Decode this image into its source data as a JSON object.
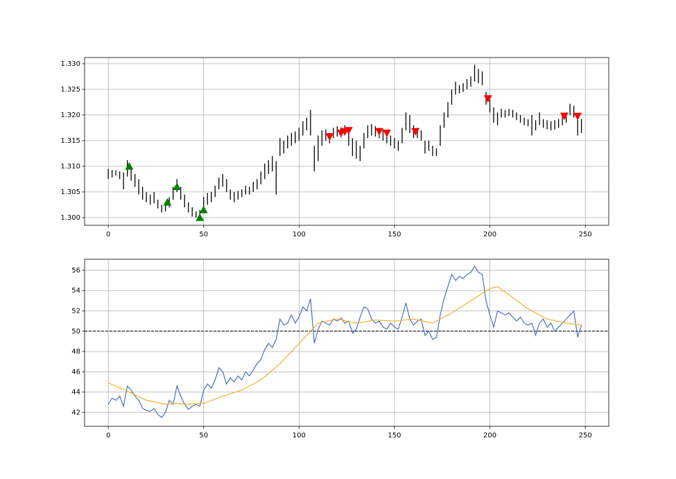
{
  "chart_data": [
    {
      "type": "range",
      "color": "#000000",
      "grid": true,
      "xlim": [
        -12.4,
        262.3
      ],
      "ylim": [
        1.2985,
        1.3312
      ],
      "xticks": [
        0,
        50,
        100,
        150,
        200,
        250
      ],
      "yticks": [
        {
          "value": 1.3,
          "label": "1.300"
        },
        {
          "value": 1.305,
          "label": "1.305"
        },
        {
          "value": 1.31,
          "label": "1.310"
        },
        {
          "value": 1.315,
          "label": "1.315"
        },
        {
          "value": 1.32,
          "label": "1.320"
        },
        {
          "value": 1.325,
          "label": "1.325"
        },
        {
          "value": 1.33,
          "label": "1.330"
        }
      ],
      "x": [
        0,
        2,
        4,
        6,
        8,
        10,
        12,
        14,
        16,
        18,
        20,
        22,
        24,
        26,
        28,
        30,
        32,
        34,
        36,
        38,
        40,
        42,
        44,
        46,
        48,
        50,
        52,
        54,
        56,
        58,
        60,
        62,
        64,
        66,
        68,
        70,
        72,
        74,
        76,
        78,
        80,
        82,
        84,
        86,
        88,
        90,
        92,
        94,
        96,
        98,
        100,
        102,
        104,
        106,
        108,
        110,
        112,
        114,
        116,
        118,
        120,
        122,
        124,
        126,
        128,
        130,
        132,
        134,
        136,
        138,
        140,
        142,
        144,
        146,
        148,
        150,
        152,
        154,
        156,
        158,
        160,
        162,
        164,
        166,
        168,
        170,
        172,
        174,
        176,
        178,
        180,
        182,
        184,
        186,
        188,
        190,
        192,
        194,
        196,
        198,
        200,
        202,
        204,
        206,
        208,
        210,
        212,
        214,
        216,
        218,
        220,
        222,
        224,
        226,
        228,
        230,
        232,
        234,
        236,
        238,
        240,
        242,
        244,
        246,
        248
      ],
      "high": [
        1.3095,
        1.3093,
        1.3092,
        1.309,
        1.3088,
        1.3112,
        1.31,
        1.3085,
        1.3075,
        1.306,
        1.305,
        1.3045,
        1.305,
        1.3035,
        1.3025,
        1.303,
        1.304,
        1.306,
        1.3075,
        1.306,
        1.3045,
        1.303,
        1.302,
        1.3012,
        1.3015,
        1.304,
        1.3048,
        1.305,
        1.3062,
        1.3078,
        1.3085,
        1.3075,
        1.3055,
        1.305,
        1.3052,
        1.3055,
        1.3062,
        1.306,
        1.307,
        1.3075,
        1.309,
        1.3105,
        1.3112,
        1.312,
        1.311,
        1.3155,
        1.315,
        1.316,
        1.3165,
        1.3168,
        1.3175,
        1.3188,
        1.3195,
        1.321,
        1.314,
        1.316,
        1.317,
        1.3172,
        1.3165,
        1.3175,
        1.3178,
        1.3176,
        1.318,
        1.317,
        1.3155,
        1.315,
        1.314,
        1.3165,
        1.318,
        1.3182,
        1.3178,
        1.3175,
        1.3172,
        1.3165,
        1.316,
        1.3155,
        1.315,
        1.3175,
        1.3205,
        1.32,
        1.318,
        1.3175,
        1.317,
        1.315,
        1.315,
        1.314,
        1.3135,
        1.318,
        1.3205,
        1.3225,
        1.325,
        1.3265,
        1.3258,
        1.3262,
        1.327,
        1.3275,
        1.3298,
        1.329,
        1.3285,
        1.3245,
        1.323,
        1.3215,
        1.3205,
        1.3212,
        1.321,
        1.3212,
        1.321,
        1.3205,
        1.32,
        1.3195,
        1.3192,
        1.32,
        1.319,
        1.3205,
        1.3192,
        1.319,
        1.3188,
        1.319,
        1.3192,
        1.3198,
        1.3205,
        1.3222,
        1.3218,
        1.32,
        1.3192
      ],
      "low": [
        1.3075,
        1.3078,
        1.3082,
        1.3075,
        1.3055,
        1.308,
        1.3072,
        1.306,
        1.3045,
        1.3035,
        1.303,
        1.3025,
        1.3028,
        1.3018,
        1.301,
        1.3012,
        1.302,
        1.3035,
        1.305,
        1.3035,
        1.302,
        1.301,
        1.3002,
        1.3,
        1.2998,
        1.3012,
        1.3025,
        1.303,
        1.304,
        1.3055,
        1.306,
        1.305,
        1.3035,
        1.303,
        1.3035,
        1.304,
        1.3045,
        1.3045,
        1.305,
        1.3055,
        1.3065,
        1.3075,
        1.3085,
        1.309,
        1.3045,
        1.312,
        1.3125,
        1.3135,
        1.314,
        1.3145,
        1.315,
        1.316,
        1.317,
        1.316,
        1.309,
        1.311,
        1.314,
        1.315,
        1.3145,
        1.3155,
        1.3158,
        1.3156,
        1.316,
        1.314,
        1.312,
        1.3115,
        1.311,
        1.3135,
        1.3155,
        1.316,
        1.3158,
        1.3155,
        1.315,
        1.3145,
        1.314,
        1.3135,
        1.313,
        1.3145,
        1.317,
        1.3165,
        1.3155,
        1.3155,
        1.315,
        1.3125,
        1.313,
        1.312,
        1.312,
        1.314,
        1.3175,
        1.3195,
        1.322,
        1.324,
        1.3242,
        1.3245,
        1.325,
        1.3255,
        1.3265,
        1.3262,
        1.3258,
        1.322,
        1.3205,
        1.3185,
        1.318,
        1.3195,
        1.3195,
        1.3198,
        1.3195,
        1.319,
        1.3185,
        1.318,
        1.3178,
        1.316,
        1.317,
        1.318,
        1.3175,
        1.3172,
        1.317,
        1.3172,
        1.3175,
        1.318,
        1.3185,
        1.32,
        1.3195,
        1.316,
        1.3165
      ],
      "buy": {
        "color": "#008000",
        "x": [
          11,
          31,
          36,
          48,
          50
        ],
        "y": [
          1.31,
          1.303,
          1.306,
          1.3,
          1.3015
        ]
      },
      "sell": {
        "color": "#ff0000",
        "x": [
          116,
          122,
          124,
          126,
          142,
          146,
          161,
          199,
          239,
          246
        ],
        "y": [
          1.3158,
          1.3165,
          1.3168,
          1.317,
          1.3168,
          1.3165,
          1.3168,
          1.3232,
          1.3198,
          1.3198
        ]
      }
    },
    {
      "type": "line",
      "grid": true,
      "xlim": [
        -12.4,
        262.3
      ],
      "ylim": [
        40.63,
        57.09
      ],
      "xticks": [
        0,
        50,
        100,
        150,
        200,
        250
      ],
      "yticks": [
        42,
        44,
        46,
        48,
        50,
        52,
        54,
        56
      ],
      "hline": 50,
      "hline_color": "#000000",
      "x": [
        0,
        2,
        4,
        6,
        8,
        10,
        12,
        14,
        16,
        18,
        20,
        22,
        24,
        26,
        28,
        30,
        32,
        34,
        36,
        38,
        40,
        42,
        44,
        46,
        48,
        50,
        52,
        54,
        56,
        58,
        60,
        62,
        64,
        66,
        68,
        70,
        72,
        74,
        76,
        78,
        80,
        82,
        84,
        86,
        88,
        90,
        92,
        94,
        96,
        98,
        100,
        102,
        104,
        106,
        108,
        110,
        112,
        114,
        116,
        118,
        120,
        122,
        124,
        126,
        128,
        130,
        132,
        134,
        136,
        138,
        140,
        142,
        144,
        146,
        148,
        150,
        152,
        154,
        156,
        158,
        160,
        162,
        164,
        166,
        168,
        170,
        172,
        174,
        176,
        178,
        180,
        182,
        184,
        186,
        188,
        190,
        192,
        194,
        196,
        198,
        200,
        202,
        204,
        206,
        208,
        210,
        212,
        214,
        216,
        218,
        220,
        222,
        224,
        226,
        228,
        230,
        232,
        234,
        236,
        238,
        240,
        242,
        244,
        246,
        248
      ],
      "series": [
        {
          "color": "#4a6fbf",
          "values": [
            42.8,
            43.4,
            43.2,
            43.6,
            42.6,
            44.6,
            44.2,
            43.6,
            43.2,
            42.4,
            42.2,
            42.1,
            42.4,
            41.8,
            41.5,
            42.0,
            43.2,
            42.8,
            44.6,
            43.6,
            42.8,
            42.3,
            42.6,
            42.8,
            42.6,
            44.2,
            44.8,
            44.4,
            45.2,
            46.4,
            46.0,
            44.8,
            45.4,
            45.0,
            45.6,
            45.2,
            46.0,
            45.6,
            46.2,
            46.8,
            47.2,
            48.2,
            48.8,
            48.4,
            49.2,
            51.2,
            50.6,
            50.8,
            51.6,
            50.8,
            51.4,
            52.4,
            52.0,
            53.2,
            48.8,
            50.2,
            51.0,
            50.8,
            50.6,
            51.2,
            51.0,
            51.3,
            50.8,
            51.0,
            49.8,
            50.2,
            51.4,
            52.4,
            52.2,
            51.2,
            50.8,
            51.0,
            50.4,
            50.2,
            50.8,
            50.4,
            50.2,
            51.4,
            52.8,
            51.2,
            50.6,
            51.0,
            51.2,
            49.6,
            50.0,
            49.2,
            49.4,
            51.6,
            53.2,
            54.4,
            55.6,
            55.0,
            55.4,
            55.2,
            55.6,
            55.8,
            56.4,
            55.8,
            55.6,
            53.0,
            51.6,
            50.4,
            52.0,
            51.8,
            51.6,
            51.8,
            51.4,
            51.0,
            51.4,
            50.8,
            50.6,
            50.8,
            49.6,
            50.8,
            51.2,
            50.4,
            50.8,
            50.0,
            50.4,
            50.8,
            51.2,
            51.6,
            52.0,
            49.4,
            50.6
          ]
        },
        {
          "color": "#f0b030",
          "x": [
            0,
            10,
            20,
            30,
            36,
            40,
            50,
            60,
            70,
            80,
            90,
            100,
            110,
            120,
            130,
            140,
            150,
            160,
            170,
            180,
            190,
            200,
            204,
            210,
            220,
            230,
            240,
            248
          ],
          "values": [
            44.9,
            44.1,
            43.2,
            42.8,
            42.9,
            42.8,
            42.9,
            43.6,
            44.2,
            45.2,
            46.8,
            48.8,
            50.8,
            51.2,
            50.8,
            51.1,
            51.0,
            51.2,
            50.8,
            51.8,
            53.0,
            54.2,
            54.4,
            53.6,
            52.2,
            51.2,
            50.8,
            50.6
          ]
        }
      ]
    }
  ]
}
